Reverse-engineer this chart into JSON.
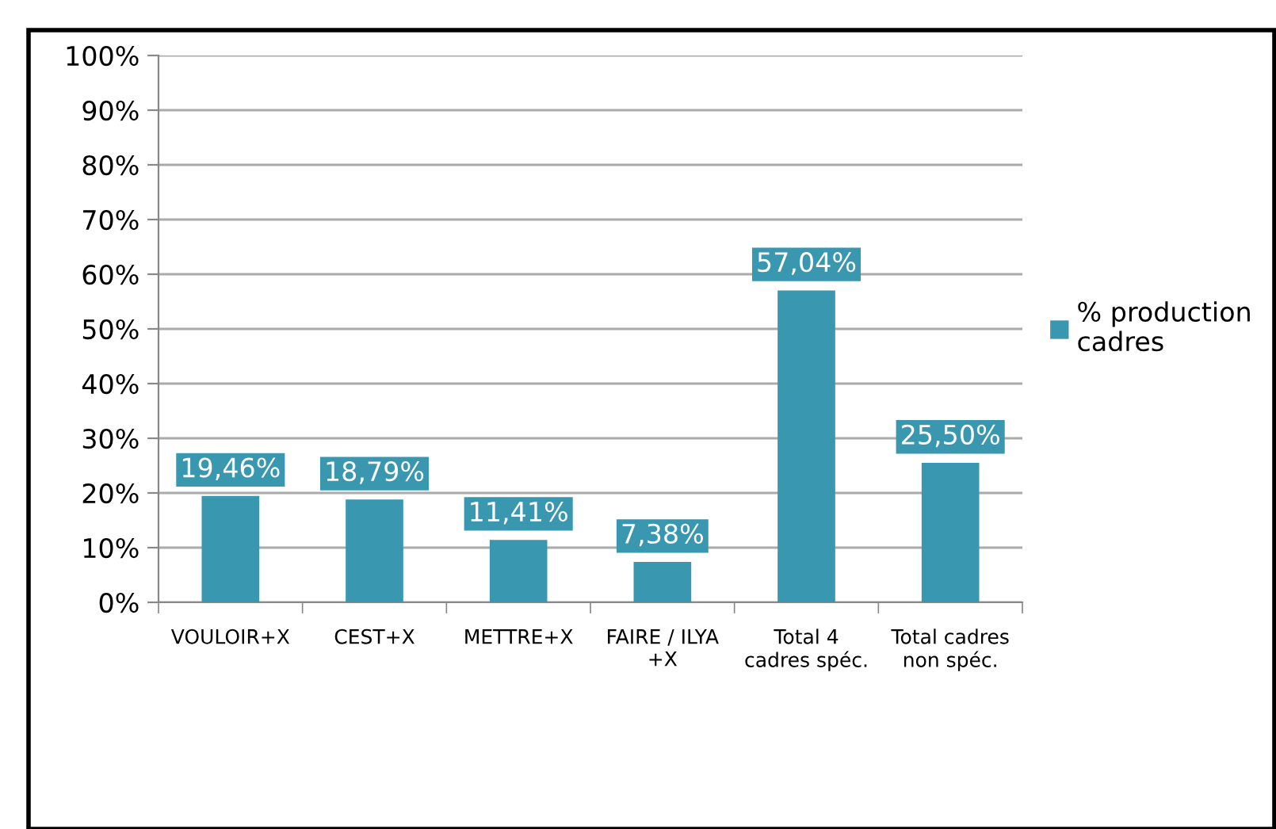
{
  "chart_data": {
    "type": "bar",
    "categories": [
      "VOULOIR+X",
      "CEST+X",
      "METTRE+X",
      "FAIRE / ILYA\n+X",
      "Total 4\ncadres spéc.",
      "Total cadres\nnon spéc."
    ],
    "series": [
      {
        "name": "% production\ncadres",
        "color": "#3a97b0",
        "values": [
          19.46,
          18.79,
          11.41,
          7.38,
          57.04,
          25.5
        ],
        "value_labels": [
          "19,46%",
          "18,79%",
          "11,41%",
          "7,38%",
          "57,04%",
          "25,50%"
        ]
      }
    ],
    "ylim": [
      0,
      100
    ],
    "yticks": [
      {
        "value": 0,
        "label": "0%"
      },
      {
        "value": 10,
        "label": "10%"
      },
      {
        "value": 20,
        "label": "20%"
      },
      {
        "value": 30,
        "label": "30%"
      },
      {
        "value": 40,
        "label": "40%"
      },
      {
        "value": 50,
        "label": "50%"
      },
      {
        "value": 60,
        "label": "60%"
      },
      {
        "value": 70,
        "label": "70%"
      },
      {
        "value": 80,
        "label": "80%"
      },
      {
        "value": 90,
        "label": "90%"
      },
      {
        "value": 100,
        "label": "100%"
      }
    ],
    "grid": "y",
    "legend": "right"
  }
}
